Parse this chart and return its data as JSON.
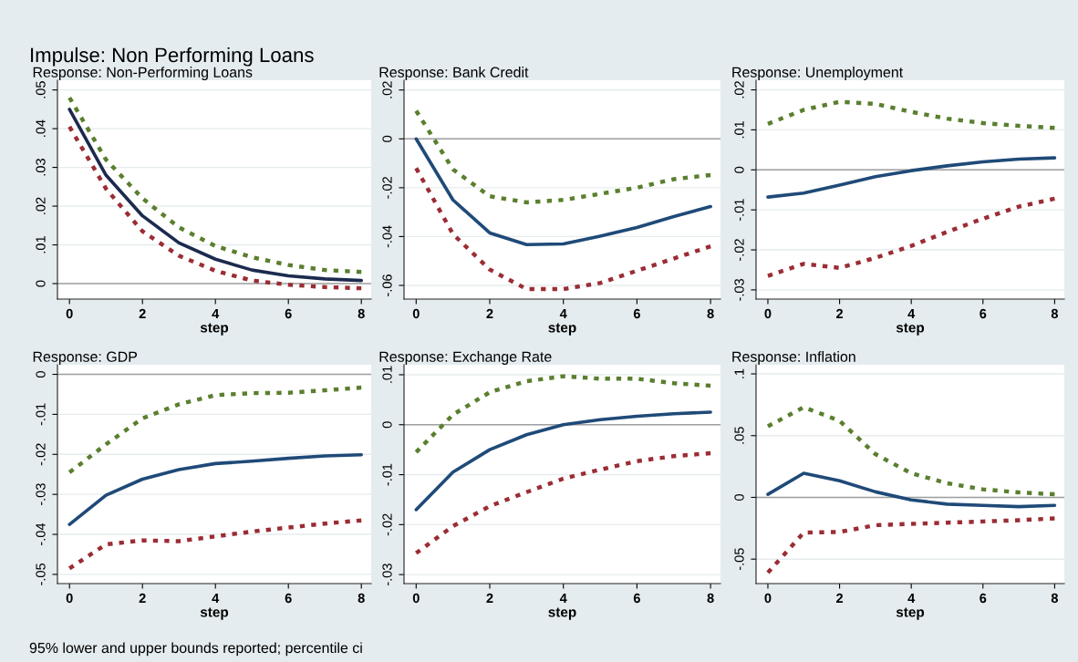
{
  "chart_data": [
    {
      "type": "line",
      "title": "Impulse: Non Performing Loans",
      "subtitle": "Response: Non-Performing Loans",
      "xlabel": "step",
      "x": [
        0,
        1,
        2,
        3,
        4,
        5,
        6,
        7,
        8
      ],
      "xlim": [
        -0.33,
        8.27
      ],
      "xticks": [
        0,
        2,
        4,
        6,
        8
      ],
      "ylim": [
        -0.004,
        0.0525
      ],
      "yticks": [
        {
          "value": 0,
          "label": "0"
        },
        {
          "value": 0.01,
          "label": ".01"
        },
        {
          "value": 0.02,
          "label": ".02"
        },
        {
          "value": 0.03,
          "label": ".03"
        },
        {
          "value": 0.04,
          "label": ".04"
        },
        {
          "value": 0.05,
          "label": ".05"
        }
      ],
      "grid": "y",
      "ref_lines": [
        {
          "axis": "y",
          "value": 0,
          "color": "#a0a0a0"
        }
      ],
      "series": [
        {
          "color": "#5a7f2e",
          "line_style": "dotted",
          "values": [
            0.048,
            0.032,
            0.022,
            0.0145,
            0.0097,
            0.0068,
            0.0048,
            0.0035,
            0.003
          ]
        },
        {
          "color": "#1c2a4e",
          "line_style": "solid",
          "values": [
            0.045,
            0.028,
            0.0175,
            0.0105,
            0.0063,
            0.0035,
            0.002,
            0.0012,
            0.0008
          ]
        },
        {
          "color": "#9b2c35",
          "line_style": "dotted",
          "values": [
            0.0405,
            0.0245,
            0.0135,
            0.0072,
            0.0033,
            0.0008,
            -0.0003,
            -0.0009,
            -0.0012
          ]
        }
      ]
    },
    {
      "type": "line",
      "title": "Response: Bank Credit",
      "xlabel": "step",
      "x": [
        0,
        1,
        2,
        3,
        4,
        5,
        6,
        7,
        8
      ],
      "xlim": [
        -0.33,
        8.27
      ],
      "xticks": [
        0,
        2,
        4,
        6,
        8
      ],
      "ylim": [
        -0.0656,
        0.024
      ],
      "yticks": [
        {
          "value": -0.06,
          "label": "-.06"
        },
        {
          "value": -0.04,
          "label": "-.04"
        },
        {
          "value": -0.02,
          "label": "-.02"
        },
        {
          "value": 0,
          "label": "0"
        },
        {
          "value": 0.02,
          "label": ".02"
        }
      ],
      "grid": "y",
      "ref_lines": [
        {
          "axis": "y",
          "value": 0,
          "color": "#a0a0a0"
        }
      ],
      "series": [
        {
          "color": "#5a7f2e",
          "line_style": "dotted",
          "values": [
            0.0115,
            -0.0125,
            -0.0235,
            -0.026,
            -0.025,
            -0.0225,
            -0.02,
            -0.0165,
            -0.0148
          ]
        },
        {
          "color": "#1f4a78",
          "line_style": "solid",
          "values": [
            0,
            -0.025,
            -0.0385,
            -0.0433,
            -0.043,
            -0.0398,
            -0.0363,
            -0.0318,
            -0.0277
          ]
        },
        {
          "color": "#9b2c35",
          "line_style": "dotted",
          "values": [
            -0.012,
            -0.039,
            -0.0535,
            -0.0615,
            -0.0615,
            -0.059,
            -0.054,
            -0.049,
            -0.044
          ]
        }
      ]
    },
    {
      "type": "line",
      "title": "Response: Unemployment",
      "xlabel": "step",
      "x": [
        0,
        1,
        2,
        3,
        4,
        5,
        6,
        7,
        8
      ],
      "xlim": [
        -0.33,
        8.27
      ],
      "xticks": [
        0,
        2,
        4,
        6,
        8
      ],
      "ylim": [
        -0.0323,
        0.0224
      ],
      "yticks": [
        {
          "value": -0.03,
          "label": "-.03"
        },
        {
          "value": -0.02,
          "label": "-.02"
        },
        {
          "value": -0.01,
          "label": "-.01"
        },
        {
          "value": 0,
          "label": "0"
        },
        {
          "value": 0.01,
          "label": ".01"
        },
        {
          "value": 0.02,
          "label": ".02"
        }
      ],
      "grid": "y",
      "ref_lines": [
        {
          "axis": "y",
          "value": 0,
          "color": "#a0a0a0"
        }
      ],
      "series": [
        {
          "color": "#5a7f2e",
          "line_style": "dotted",
          "values": [
            0.0115,
            0.015,
            0.017,
            0.0165,
            0.0145,
            0.0128,
            0.0117,
            0.011,
            0.0105
          ]
        },
        {
          "color": "#1f4a78",
          "line_style": "solid",
          "values": [
            -0.0068,
            -0.0058,
            -0.0038,
            -0.0017,
            -0.0002,
            0.001,
            0.002,
            0.0027,
            0.003
          ]
        },
        {
          "color": "#9b2c35",
          "line_style": "dotted",
          "values": [
            -0.0265,
            -0.0235,
            -0.0245,
            -0.022,
            -0.019,
            -0.0155,
            -0.0122,
            -0.0092,
            -0.0072
          ]
        }
      ]
    },
    {
      "type": "line",
      "title": "Response: GDP",
      "xlabel": "step",
      "x": [
        0,
        1,
        2,
        3,
        4,
        5,
        6,
        7,
        8
      ],
      "xlim": [
        -0.33,
        8.27
      ],
      "xticks": [
        0,
        2,
        4,
        6,
        8
      ],
      "ylim": [
        -0.0523,
        0.0024
      ],
      "yticks": [
        {
          "value": -0.05,
          "label": "-.05"
        },
        {
          "value": -0.04,
          "label": "-.04"
        },
        {
          "value": -0.03,
          "label": "-.03"
        },
        {
          "value": -0.02,
          "label": "-.02"
        },
        {
          "value": -0.01,
          "label": "-.01"
        },
        {
          "value": 0,
          "label": "0"
        }
      ],
      "grid": "y",
      "ref_lines": [
        {
          "axis": "y",
          "value": 0,
          "color": "#a0a0a0"
        }
      ],
      "series": [
        {
          "color": "#5a7f2e",
          "line_style": "dotted",
          "values": [
            -0.0245,
            -0.0175,
            -0.011,
            -0.0075,
            -0.0052,
            -0.0047,
            -0.0046,
            -0.004,
            -0.0033
          ]
        },
        {
          "color": "#1f4a78",
          "line_style": "solid",
          "values": [
            -0.0375,
            -0.0302,
            -0.0262,
            -0.0238,
            -0.0223,
            -0.0217,
            -0.021,
            -0.0204,
            -0.0201
          ]
        },
        {
          "color": "#9b2c35",
          "line_style": "dotted",
          "values": [
            -0.0485,
            -0.0425,
            -0.0415,
            -0.0417,
            -0.0405,
            -0.0393,
            -0.0383,
            -0.0373,
            -0.0365
          ]
        }
      ]
    },
    {
      "type": "line",
      "title": "Response: Exchange Rate",
      "xlabel": "step",
      "x": [
        0,
        1,
        2,
        3,
        4,
        5,
        6,
        7,
        8
      ],
      "xlim": [
        -0.33,
        8.27
      ],
      "xticks": [
        0,
        2,
        4,
        6,
        8
      ],
      "ylim": [
        -0.0318,
        0.012
      ],
      "yticks": [
        {
          "value": -0.03,
          "label": "-.03"
        },
        {
          "value": -0.02,
          "label": "-.02"
        },
        {
          "value": -0.01,
          "label": "-.01"
        },
        {
          "value": 0,
          "label": "0"
        },
        {
          "value": 0.01,
          "label": ".01"
        }
      ],
      "grid": "y",
      "ref_lines": [
        {
          "axis": "y",
          "value": 0,
          "color": "#a0a0a0"
        }
      ],
      "series": [
        {
          "color": "#5a7f2e",
          "line_style": "dotted",
          "values": [
            -0.0055,
            0.002,
            0.0065,
            0.0087,
            0.0097,
            0.0092,
            0.0092,
            0.0083,
            0.0078
          ]
        },
        {
          "color": "#1f4a78",
          "line_style": "solid",
          "values": [
            -0.017,
            -0.0095,
            -0.005,
            -0.002,
            0,
            0.001,
            0.0017,
            0.0022,
            0.0025
          ]
        },
        {
          "color": "#9b2c35",
          "line_style": "dotted",
          "values": [
            -0.0257,
            -0.0203,
            -0.0163,
            -0.0135,
            -0.0108,
            -0.009,
            -0.0073,
            -0.0063,
            -0.0057
          ]
        }
      ]
    },
    {
      "type": "line",
      "title": "Response: Inflation",
      "xlabel": "step",
      "x": [
        0,
        1,
        2,
        3,
        4,
        5,
        6,
        7,
        8
      ],
      "xlim": [
        -0.33,
        8.27
      ],
      "xticks": [
        0,
        2,
        4,
        6,
        8
      ],
      "ylim": [
        -0.0698,
        0.1074
      ],
      "yticks": [
        {
          "value": -0.05,
          "label": "-.05"
        },
        {
          "value": 0,
          "label": "0"
        },
        {
          "value": 0.05,
          "label": ".05"
        },
        {
          "value": 0.1,
          "label": ".1"
        }
      ],
      "grid": "y",
      "ref_lines": [
        {
          "axis": "y",
          "value": 0,
          "color": "#a0a0a0"
        }
      ],
      "annotations": [
        "95% lower and upper bounds reported; percentile ci"
      ],
      "series": [
        {
          "color": "#5a7f2e",
          "line_style": "dotted",
          "values": [
            0.0575,
            0.073,
            0.062,
            0.035,
            0.0195,
            0.0115,
            0.0065,
            0.004,
            0.0025
          ]
        },
        {
          "color": "#1f4a78",
          "line_style": "solid",
          "values": [
            0.0025,
            0.0195,
            0.0135,
            0.0045,
            -0.002,
            -0.0055,
            -0.0065,
            -0.0075,
            -0.0065
          ]
        },
        {
          "color": "#9b2c35",
          "line_style": "dotted",
          "values": [
            -0.061,
            -0.0285,
            -0.028,
            -0.0225,
            -0.0215,
            -0.0205,
            -0.0195,
            -0.0185,
            -0.017
          ]
        }
      ]
    }
  ]
}
